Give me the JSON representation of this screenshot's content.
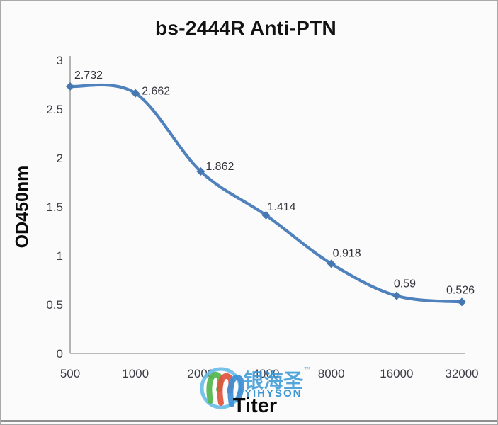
{
  "chart_data": {
    "type": "line",
    "title": "bs-2444R Anti-PTN",
    "xlabel": "Titer",
    "ylabel": "OD450nm",
    "categories": [
      "500",
      "1000",
      "2000",
      "4000",
      "8000",
      "16000",
      "32000"
    ],
    "values": [
      2.732,
      2.662,
      1.862,
      1.414,
      0.918,
      0.59,
      0.526
    ],
    "data_labels": [
      "2.732",
      "2.662",
      "1.862",
      "1.414",
      "0.918",
      "0.59",
      "0.526"
    ],
    "ylim": [
      0,
      3
    ],
    "ytick_step": 0.5,
    "yticks": [
      "0",
      "0.5",
      "1",
      "1.5",
      "2",
      "2.5",
      "3"
    ],
    "grid": false,
    "legend": "none",
    "smooth": true,
    "colors": {
      "line": "#4f81bd",
      "marker": "#4677b0",
      "axis": "#a3a3a3",
      "tick_text": "#3c3c46",
      "label_text": "#33333c"
    }
  },
  "watermark": {
    "cn_text": "银海圣",
    "tm": "™",
    "en_text": "YIHYSON",
    "colors": {
      "circle": "#66bbe8",
      "ribbon_green": "#53b64d",
      "ribbon_red": "#e2523d",
      "ribbon_blue": "#3e8ed6",
      "text_blue": "#3b9bd8"
    }
  }
}
